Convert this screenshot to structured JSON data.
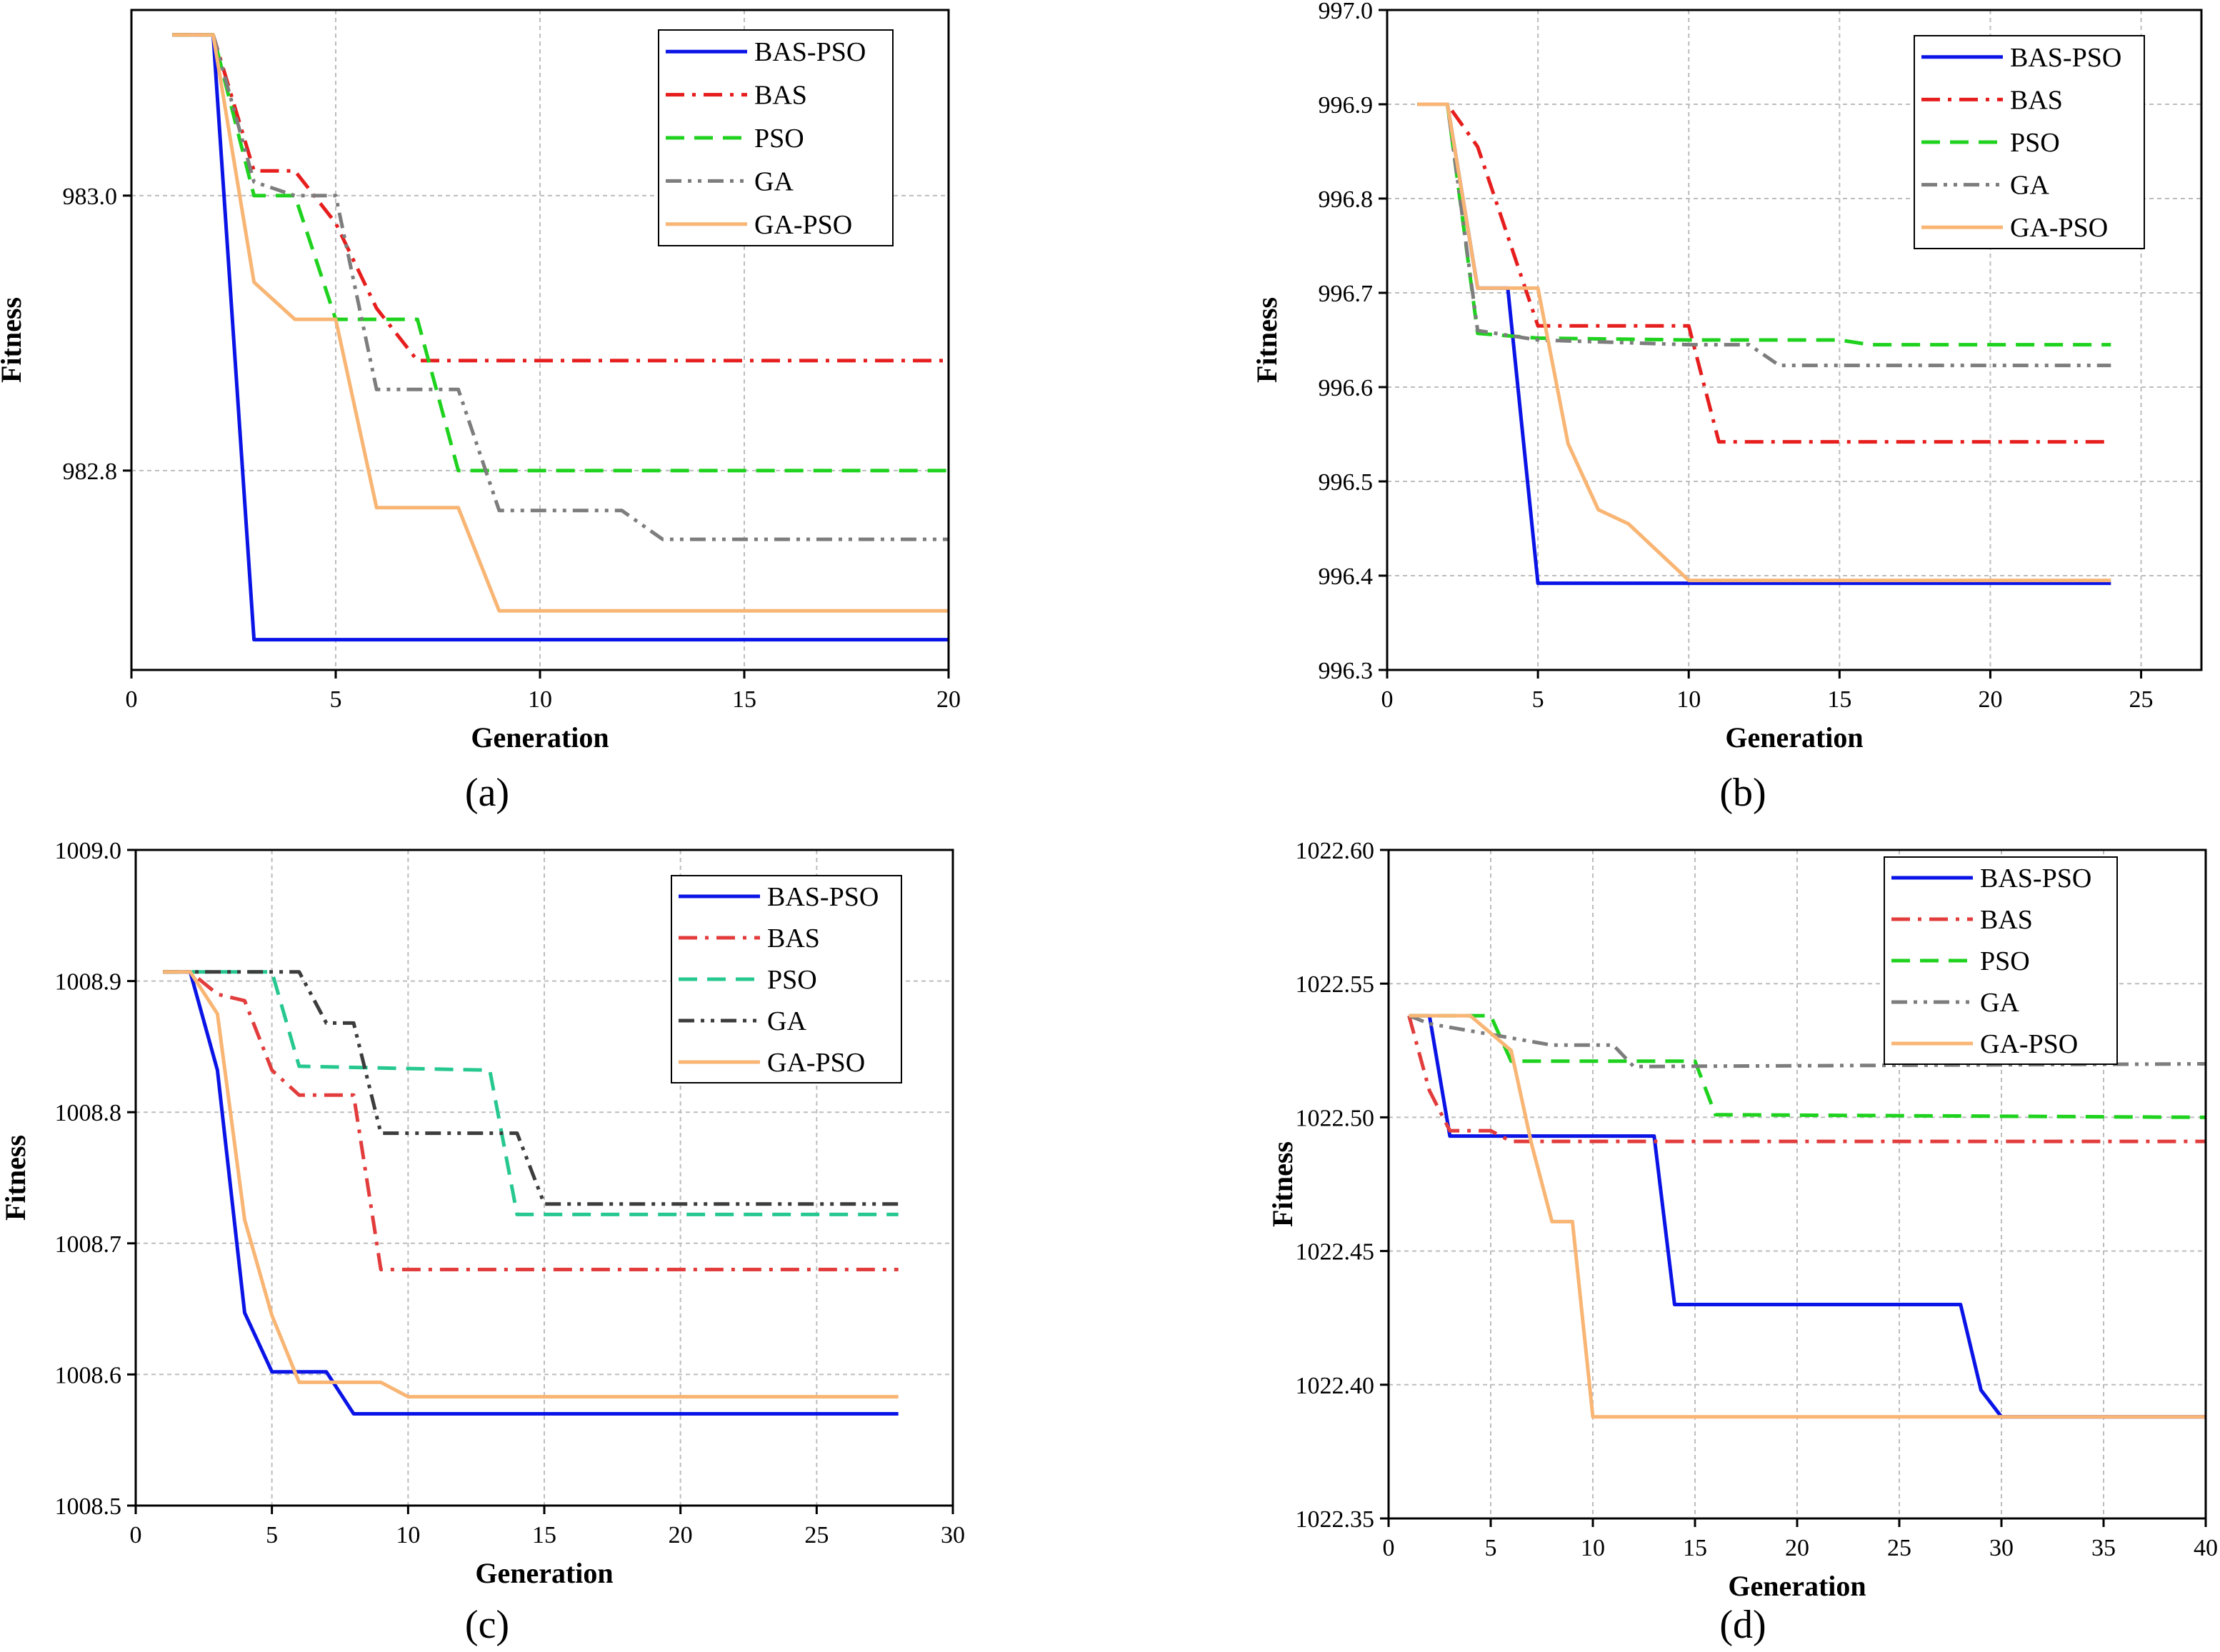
{
  "figure": {
    "panel_labels": [
      "(a)",
      "(b)",
      "(c)",
      "(d)"
    ]
  },
  "colors": {
    "BAS-PSO": "#0a14e6",
    "BAS": "#e61e1e",
    "BAS_c": "#e23c3c",
    "PSO": "#1ed21e",
    "PSO_c": "#26c890",
    "GA": "#7d7d7d",
    "GA_c": "#3c3c3c",
    "GA-PSO": "#f8b574"
  },
  "chart_data": [
    {
      "type": "line",
      "panel": "(a)",
      "xlabel": "Generation",
      "ylabel": "Fitness",
      "xlim": [
        0,
        20
      ],
      "ylim": [
        982.655,
        983.135
      ],
      "xticks": [
        0,
        5,
        10,
        15,
        20
      ],
      "yticks": [
        982.8,
        983.0
      ],
      "ytick_labels": [
        "982.8",
        "983.0"
      ],
      "grid": true,
      "legend": "top-right",
      "series": [
        {
          "name": "BAS-PSO",
          "style": "solid",
          "x": [
            1,
            2,
            3,
            20
          ],
          "y": [
            983.117,
            983.117,
            982.677,
            982.677
          ]
        },
        {
          "name": "BAS",
          "style": "dashdot",
          "x": [
            1,
            2,
            3,
            4,
            5,
            6,
            7,
            20
          ],
          "y": [
            983.117,
            983.117,
            983.018,
            983.018,
            982.98,
            982.918,
            982.88,
            982.88
          ]
        },
        {
          "name": "PSO",
          "style": "dash",
          "x": [
            1,
            2,
            3,
            4,
            5,
            6,
            7,
            8,
            20
          ],
          "y": [
            983.117,
            983.117,
            983.0,
            983.0,
            982.91,
            982.91,
            982.91,
            982.8,
            982.8
          ]
        },
        {
          "name": "GA",
          "style": "dashdotdot",
          "x": [
            1,
            2,
            3,
            4,
            5,
            6,
            8,
            9,
            12,
            13,
            20
          ],
          "y": [
            983.117,
            983.117,
            983.01,
            983.0,
            983.0,
            982.859,
            982.859,
            982.771,
            982.771,
            982.75,
            982.75
          ]
        },
        {
          "name": "GA-PSO",
          "style": "solid",
          "x": [
            1,
            2,
            3,
            4,
            5,
            6,
            8,
            9,
            20
          ],
          "y": [
            983.117,
            983.117,
            982.937,
            982.91,
            982.91,
            982.773,
            982.773,
            982.698,
            982.698
          ]
        }
      ]
    },
    {
      "type": "line",
      "panel": "(b)",
      "xlabel": "Generation",
      "ylabel": "Fitness",
      "xlim": [
        0,
        27
      ],
      "ylim": [
        996.3,
        997.0
      ],
      "xticks": [
        0,
        5,
        10,
        15,
        20,
        25
      ],
      "yticks": [
        996.3,
        996.4,
        996.5,
        996.6,
        996.7,
        996.8,
        996.9,
        997.0
      ],
      "ytick_labels": [
        "996.3",
        "996.4",
        "996.5",
        "996.6",
        "996.7",
        "996.8",
        "996.9",
        "997.0"
      ],
      "grid": true,
      "legend": "top-right",
      "series": [
        {
          "name": "BAS-PSO",
          "style": "solid",
          "x": [
            1,
            2,
            3,
            4,
            5,
            24
          ],
          "y": [
            996.9,
            996.9,
            996.705,
            996.705,
            996.392,
            996.392
          ]
        },
        {
          "name": "BAS",
          "style": "dashdot",
          "x": [
            1,
            2,
            3,
            4,
            5,
            10,
            11,
            24
          ],
          "y": [
            996.9,
            996.9,
            996.855,
            996.76,
            996.665,
            996.665,
            996.542,
            996.542
          ]
        },
        {
          "name": "PSO",
          "style": "dash",
          "x": [
            1,
            2,
            3,
            5,
            10,
            15,
            16,
            24
          ],
          "y": [
            996.9,
            996.9,
            996.657,
            996.652,
            996.65,
            996.65,
            996.645,
            996.645
          ]
        },
        {
          "name": "GA",
          "style": "dashdotdot",
          "x": [
            1,
            2,
            3,
            5,
            10,
            12,
            13,
            24
          ],
          "y": [
            996.9,
            996.9,
            996.66,
            996.65,
            996.645,
            996.645,
            996.623,
            996.623
          ]
        },
        {
          "name": "GA-PSO",
          "style": "solid",
          "x": [
            1,
            2,
            3,
            4,
            5,
            6,
            7,
            8,
            9,
            10,
            24
          ],
          "y": [
            996.9,
            996.9,
            996.705,
            996.705,
            996.705,
            996.54,
            996.47,
            996.455,
            996.425,
            996.395,
            996.395
          ]
        }
      ]
    },
    {
      "type": "line",
      "panel": "(c)",
      "xlabel": "Generation",
      "ylabel": "Fitness",
      "xlim": [
        0,
        30
      ],
      "ylim": [
        1008.5,
        1009.0
      ],
      "xticks": [
        0,
        5,
        10,
        15,
        20,
        25,
        30
      ],
      "yticks": [
        1008.5,
        1008.6,
        1008.7,
        1008.8,
        1008.9,
        1009.0
      ],
      "ytick_labels": [
        "1008.5",
        "1008.6",
        "1008.7",
        "1008.8",
        "1008.9",
        "1009.0"
      ],
      "grid": true,
      "legend": "top-right",
      "series": [
        {
          "name": "BAS-PSO",
          "style": "solid",
          "x": [
            1,
            2,
            3,
            4,
            5,
            7,
            8,
            28
          ],
          "y": [
            1008.907,
            1008.907,
            1008.832,
            1008.647,
            1008.602,
            1008.602,
            1008.57,
            1008.57
          ]
        },
        {
          "name": "BAS",
          "style": "dashdot",
          "x": [
            1,
            2,
            3,
            4,
            5,
            6,
            8,
            9,
            28
          ],
          "y": [
            1008.907,
            1008.907,
            1008.89,
            1008.885,
            1008.832,
            1008.813,
            1008.813,
            1008.68,
            1008.68
          ]
        },
        {
          "name": "PSO",
          "style": "dash",
          "x": [
            1,
            5,
            6,
            13,
            14,
            28
          ],
          "y": [
            1008.907,
            1008.907,
            1008.835,
            1008.832,
            1008.722,
            1008.722
          ]
        },
        {
          "name": "GA",
          "style": "dashdotdot",
          "x": [
            1,
            6,
            7,
            8,
            9,
            14,
            15,
            28
          ],
          "y": [
            1008.907,
            1008.907,
            1008.868,
            1008.868,
            1008.784,
            1008.784,
            1008.73,
            1008.73
          ]
        },
        {
          "name": "GA-PSO",
          "style": "solid",
          "x": [
            1,
            2,
            3,
            4,
            5,
            6,
            9,
            10,
            28
          ],
          "y": [
            1008.907,
            1008.907,
            1008.875,
            1008.718,
            1008.645,
            1008.594,
            1008.594,
            1008.583,
            1008.583
          ]
        }
      ]
    },
    {
      "type": "line",
      "panel": "(d)",
      "xlabel": "Generation",
      "ylabel": "Fitness",
      "xlim": [
        0,
        40
      ],
      "ylim": [
        1022.35,
        1022.6
      ],
      "xticks": [
        0,
        5,
        10,
        15,
        20,
        25,
        30,
        35,
        40
      ],
      "yticks": [
        1022.35,
        1022.4,
        1022.45,
        1022.5,
        1022.55,
        1022.6
      ],
      "ytick_labels": [
        "1022.35",
        "1022.40",
        "1022.45",
        "1022.50",
        "1022.55",
        "1022.60"
      ],
      "grid": true,
      "legend": "top-right",
      "series": [
        {
          "name": "BAS-PSO",
          "style": "solid",
          "x": [
            1,
            2,
            3,
            13,
            14,
            28,
            29,
            30,
            40
          ],
          "y": [
            1022.538,
            1022.538,
            1022.493,
            1022.493,
            1022.43,
            1022.43,
            1022.398,
            1022.388,
            1022.388
          ]
        },
        {
          "name": "BAS",
          "style": "dashdot",
          "x": [
            1,
            2,
            3,
            5,
            6,
            40
          ],
          "y": [
            1022.538,
            1022.51,
            1022.495,
            1022.495,
            1022.491,
            1022.491
          ]
        },
        {
          "name": "PSO",
          "style": "dash",
          "x": [
            1,
            5,
            6,
            15,
            16,
            40
          ],
          "y": [
            1022.538,
            1022.538,
            1022.521,
            1022.521,
            1022.501,
            1022.5
          ]
        },
        {
          "name": "GA",
          "style": "dashdotdot",
          "x": [
            1,
            2,
            5,
            8,
            11,
            12,
            40
          ],
          "y": [
            1022.538,
            1022.535,
            1022.531,
            1022.527,
            1022.527,
            1022.519,
            1022.52
          ]
        },
        {
          "name": "GA-PSO",
          "style": "solid",
          "x": [
            1,
            4,
            6,
            7,
            8,
            9,
            10,
            40
          ],
          "y": [
            1022.538,
            1022.538,
            1022.525,
            1022.49,
            1022.461,
            1022.461,
            1022.388,
            1022.388
          ]
        }
      ]
    }
  ]
}
